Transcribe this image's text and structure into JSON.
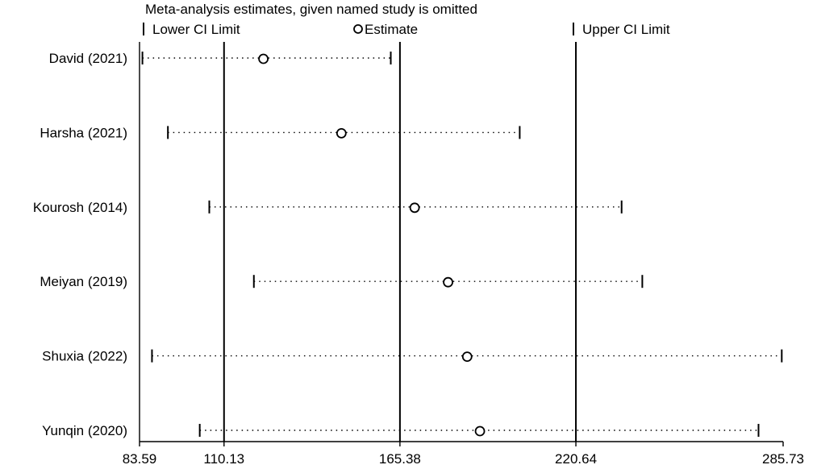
{
  "chart_data": {
    "type": "scatter",
    "title": "Meta-analysis estimates, given named study is omitted",
    "legend": {
      "placement": "top",
      "entries": [
        {
          "name": "Lower CI Limit",
          "marker": "tick"
        },
        {
          "name": "Estimate",
          "marker": "circle"
        },
        {
          "name": "Upper CI Limit",
          "marker": "tick"
        }
      ]
    },
    "x_ticks": [
      "83.59",
      "110.13",
      "165.38",
      "220.64",
      "285.73"
    ],
    "xlim": [
      83.59,
      285.73
    ],
    "reference_lines": [
      110.13,
      165.38,
      220.64
    ],
    "grid": false,
    "series_line": "dotted",
    "studies": [
      {
        "label": "David (2021)",
        "lower": 84.5,
        "estimate": 122.5,
        "upper": 162.5
      },
      {
        "label": "Harsha (2021)",
        "lower": 92.5,
        "estimate": 147.0,
        "upper": 203.0
      },
      {
        "label": "Kourosh (2014)",
        "lower": 105.5,
        "estimate": 170.0,
        "upper": 235.0
      },
      {
        "label": "Meiyan (2019)",
        "lower": 119.5,
        "estimate": 180.5,
        "upper": 241.5
      },
      {
        "label": "Shuxia (2022)",
        "lower": 87.5,
        "estimate": 186.5,
        "upper": 285.3
      },
      {
        "label": "Yunqin (2020)",
        "lower": 102.5,
        "estimate": 190.5,
        "upper": 278.0
      }
    ],
    "colors": {
      "marks": "#000000",
      "background": "#ffffff"
    }
  }
}
